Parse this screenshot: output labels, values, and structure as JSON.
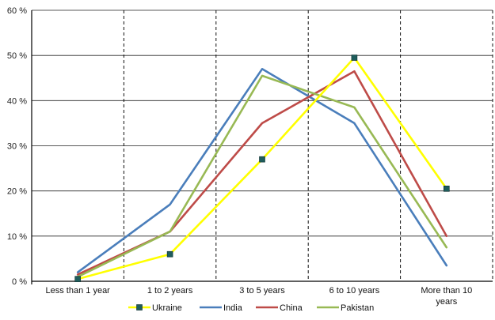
{
  "chart_data": {
    "type": "line",
    "title": "",
    "xlabel": "",
    "ylabel": "",
    "categories": [
      [
        "Less than 1 year"
      ],
      [
        "1 to 2 years"
      ],
      [
        "3 to 5 years"
      ],
      [
        "6 to 10 years"
      ],
      [
        "More than 10",
        "years"
      ]
    ],
    "ylim": [
      0,
      60
    ],
    "yticks": [
      "0 %",
      "10 %",
      "20 %",
      "30 %",
      "40 %",
      "50 %",
      "60 %"
    ],
    "grid": true,
    "legend_position": "bottom",
    "series": [
      {
        "name": "Ukraine",
        "color": "#ffff00",
        "marker": "square",
        "values": [
          0.5,
          6,
          27,
          49.5,
          20.5
        ]
      },
      {
        "name": "India",
        "color": "#4a7ebb",
        "marker": "none",
        "values": [
          2,
          17,
          47,
          35,
          3.5
        ]
      },
      {
        "name": "China",
        "color": "#be4b48",
        "marker": "none",
        "values": [
          1.5,
          11,
          35,
          46.5,
          10
        ]
      },
      {
        "name": "Pakistan",
        "color": "#98b954",
        "marker": "none",
        "values": [
          1,
          11,
          45.5,
          38.5,
          7.5
        ]
      }
    ]
  }
}
